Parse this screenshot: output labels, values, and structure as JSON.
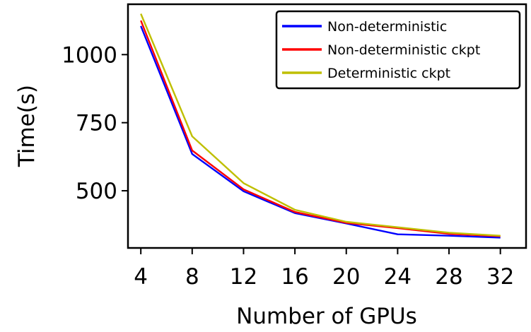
{
  "chart_data": {
    "type": "line",
    "title": "",
    "xlabel": "Number of GPUs",
    "ylabel": "Time(s)",
    "x": [
      4,
      8,
      12,
      16,
      20,
      24,
      28,
      32
    ],
    "x_ticks": [
      4,
      8,
      12,
      16,
      20,
      24,
      28,
      32
    ],
    "y_ticks": [
      500,
      750,
      1000
    ],
    "xlim": [
      3,
      34
    ],
    "ylim": [
      290,
      1185
    ],
    "grid": false,
    "legend_position": "top-right",
    "series": [
      {
        "name": "Non-deterministic",
        "color": "#0000ff",
        "values": [
          1105,
          635,
          498,
          418,
          380,
          340,
          335,
          328
        ]
      },
      {
        "name": "Non-deterministic ckpt",
        "color": "#ff0000",
        "values": [
          1125,
          648,
          505,
          422,
          382,
          363,
          342,
          333
        ]
      },
      {
        "name": "Deterministic ckpt",
        "color": "#bfbf00",
        "values": [
          1150,
          700,
          528,
          430,
          386,
          366,
          346,
          335
        ]
      }
    ]
  }
}
